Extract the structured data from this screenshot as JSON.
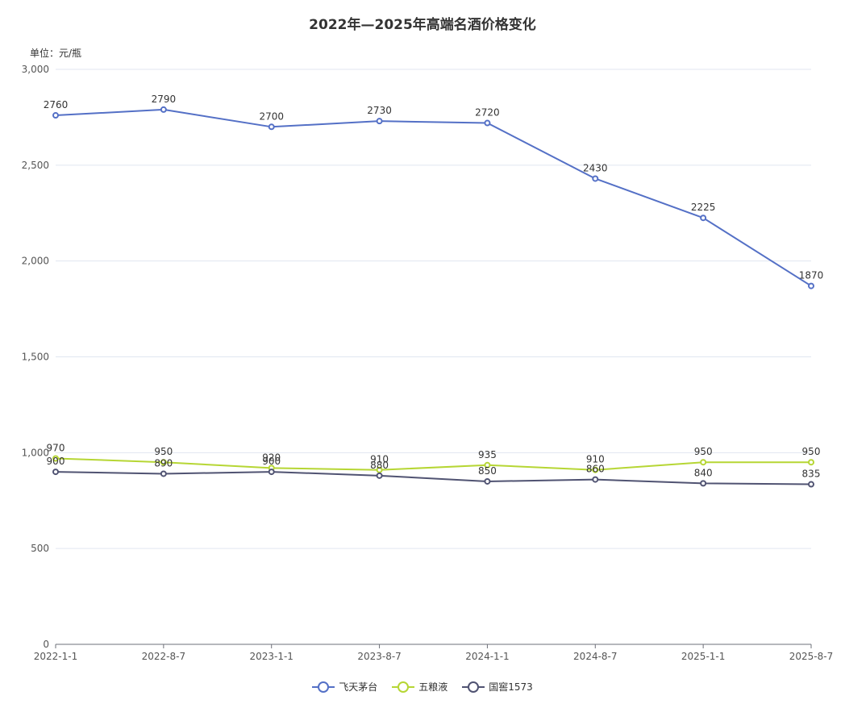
{
  "chart_data": {
    "type": "line",
    "title": "2022年—2025年高端名酒价格变化",
    "ylabel": "单位：元/瓶",
    "xlabel": "",
    "categories": [
      "2022-1-1",
      "2022-8-7",
      "2023-1-1",
      "2023-8-7",
      "2024-1-1",
      "2024-8-7",
      "2025-1-1",
      "2025-8-7"
    ],
    "ylim": [
      0,
      3000
    ],
    "yticks": [
      0,
      500,
      1000,
      1500,
      2000,
      2500,
      3000
    ],
    "ytick_labels": [
      "0",
      "500",
      "1,000",
      "1,500",
      "2,000",
      "2,500",
      "3,000"
    ],
    "grid": true,
    "legend_position": "bottom-center",
    "series": [
      {
        "name": "飞天茅台",
        "color": "#5470c6",
        "values": [
          2760,
          2790,
          2700,
          2730,
          2720,
          2430,
          2225,
          1870
        ]
      },
      {
        "name": "五粮液",
        "color": "#b6d634",
        "values": [
          970,
          950,
          920,
          910,
          935,
          910,
          950,
          950
        ]
      },
      {
        "name": "国窖1573",
        "color": "#505372",
        "values": [
          900,
          890,
          900,
          880,
          850,
          860,
          840,
          835
        ]
      }
    ]
  }
}
